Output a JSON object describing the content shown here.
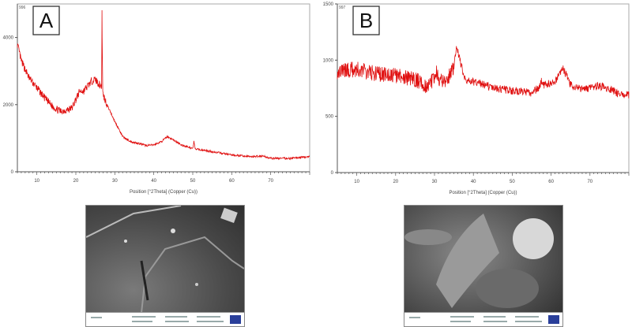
{
  "chart_data": [
    {
      "type": "line",
      "panel_label": "A",
      "sample_id": "996",
      "xlabel": "Position [°2Theta] (Copper (Cu))",
      "ylabel": "",
      "xlim": [
        5,
        80
      ],
      "ylim": [
        0,
        5000
      ],
      "xticks": [
        10,
        20,
        30,
        40,
        50,
        60,
        70
      ],
      "yticks": [
        0,
        2000,
        4000
      ],
      "grid": false,
      "color": "#e01010",
      "points": [
        [
          5,
          3800
        ],
        [
          6,
          3300
        ],
        [
          8,
          2800
        ],
        [
          10,
          2500
        ],
        [
          12,
          2200
        ],
        [
          14,
          1950
        ],
        [
          16,
          1800
        ],
        [
          18,
          1850
        ],
        [
          19,
          1900
        ],
        [
          20,
          2150
        ],
        [
          21,
          2400
        ],
        [
          22,
          2400
        ],
        [
          24,
          2700
        ],
        [
          25,
          2750
        ],
        [
          26,
          2600
        ],
        [
          26.6,
          2550
        ],
        [
          26.7,
          4750
        ],
        [
          26.9,
          2500
        ],
        [
          27,
          2300
        ],
        [
          28,
          2000
        ],
        [
          30,
          1500
        ],
        [
          32,
          1050
        ],
        [
          34,
          900
        ],
        [
          36,
          850
        ],
        [
          38,
          780
        ],
        [
          40,
          800
        ],
        [
          42,
          900
        ],
        [
          43.5,
          1050
        ],
        [
          45,
          950
        ],
        [
          47,
          800
        ],
        [
          50,
          700
        ],
        [
          50.3,
          900
        ],
        [
          50.6,
          680
        ],
        [
          55,
          600
        ],
        [
          60,
          500
        ],
        [
          65,
          450
        ],
        [
          68,
          470
        ],
        [
          70,
          400
        ],
        [
          75,
          400
        ],
        [
          80,
          450
        ]
      ]
    },
    {
      "type": "line",
      "panel_label": "B",
      "sample_id": "997",
      "xlabel": "Position [°2Theta] (Copper (Cu))",
      "ylabel": "",
      "xlim": [
        5,
        80
      ],
      "ylim": [
        0,
        1500
      ],
      "xticks": [
        10,
        20,
        30,
        40,
        50,
        60,
        70
      ],
      "yticks": [
        0,
        500,
        1000,
        1500
      ],
      "grid": false,
      "color": "#e01010",
      "points": [
        [
          5,
          900
        ],
        [
          10,
          920
        ],
        [
          15,
          880
        ],
        [
          20,
          860
        ],
        [
          25,
          830
        ],
        [
          28,
          770
        ],
        [
          30,
          830
        ],
        [
          30.5,
          900
        ],
        [
          31,
          820
        ],
        [
          33,
          800
        ],
        [
          35,
          950
        ],
        [
          35.8,
          1130
        ],
        [
          36.5,
          1000
        ],
        [
          38,
          820
        ],
        [
          42,
          790
        ],
        [
          45,
          750
        ],
        [
          50,
          730
        ],
        [
          55,
          710
        ],
        [
          57,
          760
        ],
        [
          57.5,
          820
        ],
        [
          58,
          780
        ],
        [
          61,
          800
        ],
        [
          63,
          930
        ],
        [
          64,
          860
        ],
        [
          65,
          780
        ],
        [
          68,
          740
        ],
        [
          72,
          770
        ],
        [
          74,
          760
        ],
        [
          77,
          710
        ],
        [
          80,
          690
        ]
      ]
    }
  ]
}
